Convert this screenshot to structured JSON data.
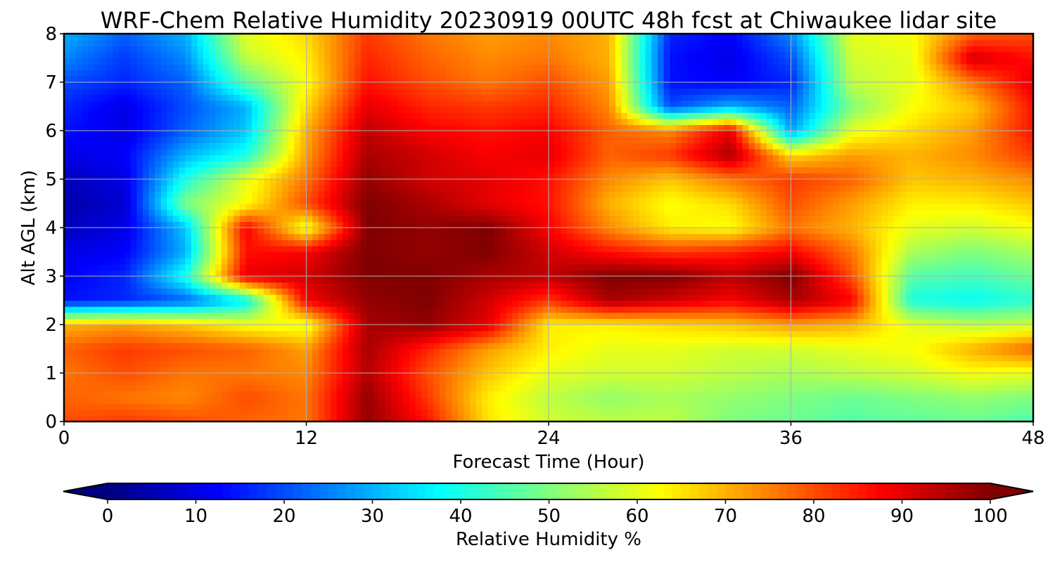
{
  "chart_data": {
    "type": "heatmap",
    "title": "WRF-Chem Relative Humidity 20230919 00UTC 48h fcst at Chiwaukee lidar site",
    "xlabel": "Forecast Time (Hour)",
    "ylabel": "Alt AGL (km)",
    "xlim": [
      0,
      48
    ],
    "ylim": [
      0,
      8
    ],
    "xticks": [
      0,
      12,
      24,
      36,
      48
    ],
    "yticks": [
      0,
      1,
      2,
      3,
      4,
      5,
      6,
      7,
      8
    ],
    "grid": true,
    "x": [
      0,
      3,
      6,
      9,
      12,
      15,
      18,
      21,
      24,
      27,
      30,
      33,
      36,
      39,
      42,
      45,
      48
    ],
    "y": [
      0,
      0.5,
      1,
      1.5,
      2,
      2.5,
      3,
      3.5,
      4,
      4.5,
      5,
      5.5,
      6,
      6.5,
      7,
      7.5,
      8
    ],
    "z": [
      [
        80,
        82,
        80,
        78,
        76,
        98,
        86,
        65,
        58,
        56,
        56,
        50,
        48,
        46,
        47,
        48,
        45
      ],
      [
        78,
        76,
        74,
        80,
        76,
        98,
        82,
        64,
        56,
        52,
        54,
        52,
        50,
        48,
        50,
        52,
        50
      ],
      [
        76,
        80,
        76,
        76,
        74,
        95,
        80,
        68,
        60,
        58,
        58,
        56,
        54,
        56,
        58,
        62,
        60
      ],
      [
        78,
        82,
        80,
        78,
        72,
        96,
        84,
        72,
        64,
        60,
        60,
        58,
        58,
        60,
        62,
        70,
        78
      ],
      [
        70,
        72,
        68,
        62,
        60,
        96,
        98,
        90,
        64,
        64,
        66,
        68,
        72,
        70,
        60,
        56,
        58
      ],
      [
        14,
        16,
        22,
        36,
        88,
        98,
        100,
        92,
        82,
        96,
        92,
        88,
        96,
        88,
        40,
        38,
        42
      ],
      [
        12,
        16,
        40,
        90,
        92,
        100,
        100,
        96,
        94,
        100,
        100,
        94,
        100,
        80,
        46,
        44,
        48
      ],
      [
        10,
        12,
        30,
        86,
        88,
        100,
        98,
        100,
        92,
        86,
        82,
        84,
        88,
        76,
        54,
        50,
        54
      ],
      [
        6,
        10,
        32,
        88,
        60,
        100,
        98,
        100,
        88,
        74,
        64,
        62,
        76,
        70,
        60,
        58,
        62
      ],
      [
        4,
        8,
        50,
        62,
        80,
        100,
        96,
        90,
        86,
        70,
        62,
        66,
        80,
        72,
        64,
        64,
        68
      ],
      [
        6,
        10,
        40,
        60,
        76,
        98,
        92,
        90,
        86,
        74,
        68,
        76,
        82,
        78,
        68,
        70,
        74
      ],
      [
        10,
        12,
        30,
        40,
        72,
        96,
        92,
        88,
        90,
        78,
        82,
        96,
        66,
        72,
        70,
        74,
        82
      ],
      [
        14,
        10,
        22,
        32,
        70,
        94,
        88,
        86,
        88,
        78,
        74,
        90,
        28,
        60,
        66,
        72,
        86
      ],
      [
        16,
        10,
        20,
        30,
        66,
        90,
        84,
        82,
        84,
        74,
        20,
        30,
        22,
        50,
        62,
        68,
        86
      ],
      [
        20,
        16,
        22,
        46,
        62,
        86,
        80,
        76,
        80,
        72,
        14,
        12,
        16,
        56,
        60,
        76,
        90
      ],
      [
        26,
        18,
        26,
        56,
        64,
        84,
        78,
        74,
        76,
        70,
        14,
        10,
        20,
        58,
        60,
        92,
        86
      ],
      [
        30,
        22,
        30,
        60,
        66,
        82,
        76,
        72,
        74,
        70,
        16,
        12,
        26,
        60,
        62,
        78,
        80
      ]
    ],
    "colorbar": {
      "label": "Relative Humidity %",
      "min": 0,
      "max": 100,
      "ticks": [
        0,
        10,
        20,
        30,
        40,
        50,
        60,
        70,
        80,
        90,
        100
      ],
      "extend": "both",
      "colormap": "jet"
    }
  }
}
